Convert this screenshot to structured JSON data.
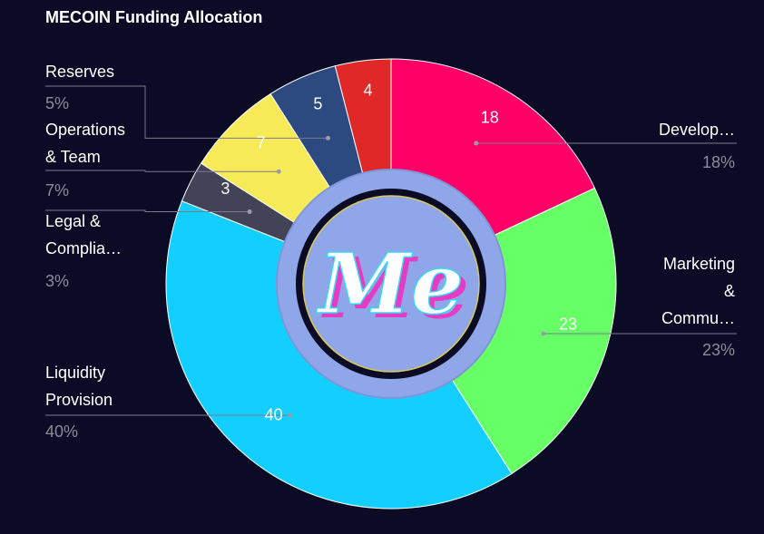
{
  "chart_data": {
    "type": "pie",
    "title": "MECOIN Funding Allocation",
    "center_logo_text": "Me",
    "slices": [
      {
        "label": "Develop...",
        "value": 18,
        "percent_label": "18%",
        "color": "#ff0066"
      },
      {
        "label": "Marketing & Commu...",
        "value": 23,
        "percent_label": "23%",
        "color": "#66ff66"
      },
      {
        "label": "Liquidity Provision",
        "value": 40,
        "percent_label": "40%",
        "color": "#12cfff"
      },
      {
        "label": "Legal & Complia...",
        "value": 3,
        "percent_label": "3%",
        "color": "#434357"
      },
      {
        "label": "Operations & Team",
        "value": 7,
        "percent_label": "7%",
        "color": "#f7ea59"
      },
      {
        "label": "Reserves",
        "value": 5,
        "percent_label": "5%",
        "color": "#2c4a80"
      },
      {
        "label": "",
        "value": 4,
        "percent_label": "",
        "color": "#e02828"
      }
    ],
    "legend_text": {
      "develop": "Develop…",
      "marketing_1": "Marketing",
      "marketing_2": "&",
      "marketing_3": "Commu…",
      "liquidity_1": "Liquidity",
      "liquidity_2": "Provision",
      "legal_1": "Legal &",
      "legal_2": "Complia…",
      "operations_1": "Operations",
      "operations_2": "& Team",
      "reserves": "Reserves"
    }
  }
}
